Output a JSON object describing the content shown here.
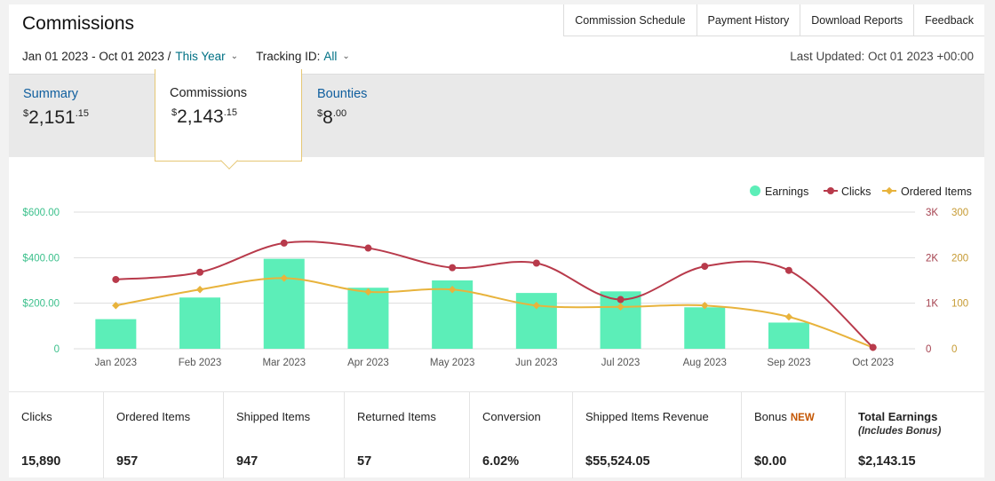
{
  "header": {
    "title": "Commissions",
    "links": [
      "Commission Schedule",
      "Payment History",
      "Download Reports",
      "Feedback"
    ]
  },
  "filters": {
    "date_range": "Jan 01 2023 - Oct 01 2023 /",
    "period": "This Year",
    "tracking_label": "Tracking ID:",
    "tracking_value": "All",
    "last_updated": "Last Updated: Oct 01 2023 +00:00"
  },
  "tabs": {
    "summary": {
      "label": "Summary",
      "currency": "$",
      "whole": "2,151",
      "cents": ".15"
    },
    "commissions": {
      "label": "Commissions",
      "currency": "$",
      "whole": "2,143",
      "cents": ".15"
    },
    "bounties": {
      "label": "Bounties",
      "currency": "$",
      "whole": "8",
      "cents": ".00"
    }
  },
  "colors": {
    "earnings": "#5ceeb8",
    "clicks": "#b83a4b",
    "ordered": "#e8b33c",
    "grid": "#dddddd",
    "left_axis_text": "#3cc08c",
    "right_clicks_text": "#a5424f",
    "right_items_text": "#c69a32"
  },
  "chart_data": {
    "type": "bar",
    "categories": [
      "Jan 2023",
      "Feb 2023",
      "Mar 2023",
      "Apr 2023",
      "May 2023",
      "Jun 2023",
      "Jul 2023",
      "Aug 2023",
      "Sep 2023",
      "Oct 2023"
    ],
    "legend_position": "top-right",
    "series": [
      {
        "name": "Earnings",
        "kind": "bar",
        "axis": "left",
        "values": [
          130,
          225,
          395,
          268,
          300,
          245,
          252,
          182,
          115,
          0
        ]
      },
      {
        "name": "Clicks",
        "kind": "line",
        "axis": "right-clicks",
        "values": [
          1520,
          1680,
          2320,
          2210,
          1780,
          1880,
          1080,
          1810,
          1720,
          30
        ]
      },
      {
        "name": "Ordered Items",
        "kind": "line",
        "axis": "right-items",
        "values": [
          95,
          130,
          155,
          125,
          130,
          95,
          92,
          95,
          70,
          3
        ]
      }
    ],
    "left_axis": {
      "ylim": [
        0,
        600
      ],
      "ticks": [
        "0",
        "$200.00",
        "$400.00",
        "$600.00"
      ]
    },
    "right_axis_clicks": {
      "ylim": [
        0,
        3000
      ],
      "ticks": [
        "0",
        "1K",
        "2K",
        "3K"
      ]
    },
    "right_axis_items": {
      "ylim": [
        0,
        300
      ],
      "ticks": [
        "0",
        "100",
        "200",
        "300"
      ]
    },
    "grid": true
  },
  "stats": [
    {
      "label": "Clicks",
      "value": "15,890"
    },
    {
      "label": "Ordered Items",
      "value": "957"
    },
    {
      "label": "Shipped Items",
      "value": "947"
    },
    {
      "label": "Returned Items",
      "value": "57"
    },
    {
      "label": "Conversion",
      "value": "6.02%"
    },
    {
      "label": "Shipped Items Revenue",
      "value": "$55,524.05"
    },
    {
      "label": "Bonus",
      "badge": "NEW",
      "value": "$0.00"
    },
    {
      "label": "Total Earnings",
      "note": "(Includes Bonus)",
      "value": "$2,143.15"
    }
  ]
}
